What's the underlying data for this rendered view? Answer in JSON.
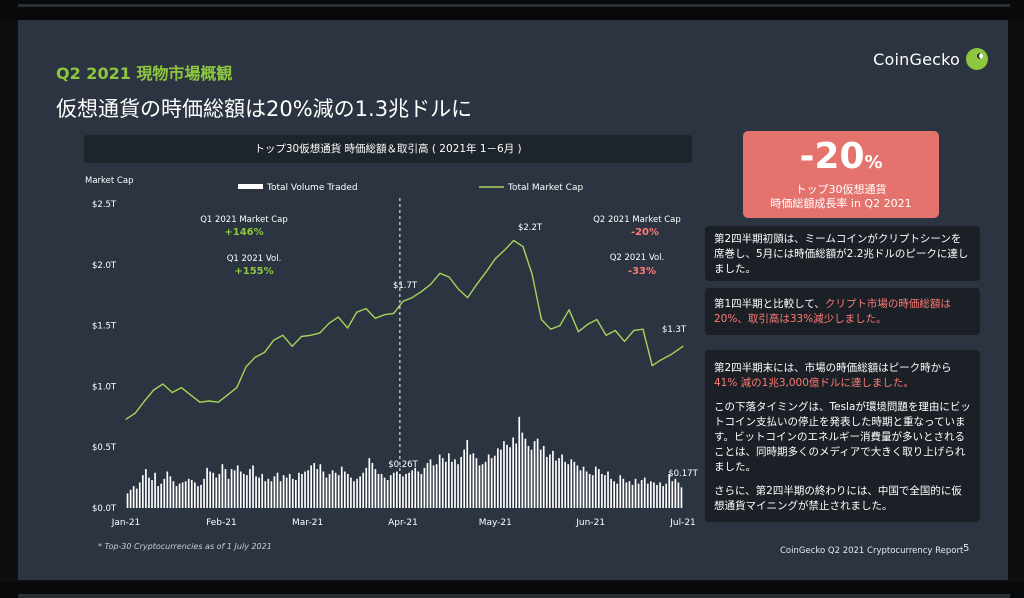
{
  "header": {
    "kicker": "Q2 2021 現物市場概観",
    "headline": "仮想通貨の時価総額は20%減の1.3兆ドルに",
    "brand": "CoinGecko"
  },
  "chart_title": "トップ30仮想通貨 時価総額＆取引高 ( 2021年 1－6月 )",
  "callout": {
    "value": "-20",
    "unit": "%",
    "line1": "トップ30仮想通貨",
    "line2": "時価総額成長率 in Q2 2021"
  },
  "notes": {
    "n1": "第2四半期初頭は、ミームコインがクリプトシーンを席巻し、5月には時価総額が2.2兆ドルのピークに達しました。",
    "n2_prefix": "第1四半期と比較して、",
    "n2_red": "クリプト市場の時価総額は20%、取引高は33%減少しました。",
    "n3_p1_prefix": "第2四半期末には、市場の時価総額はピーク時から",
    "n3_p1_red": "41% 減の1兆3,000億ドルに達しました。",
    "n3_p2": "この下落タイミングは、Teslaが環境問題を理由にビットコイン支払いの停止を発表した時期と重なっています。ビットコインのエネルギー消費量が多いとされることは、同時期多くのメディアで大きく取り上げられました。",
    "n3_p3": "さらに、第2四半期の終わりには、中国で全国的に仮想通貨マイニングが禁止されました。"
  },
  "footer": {
    "footnote": "* Top-30 Cryptocurrencies as of 1 July 2021",
    "report": "CoinGecko Q2 2021 Cryptocurrency Report",
    "page": "5"
  },
  "colors": {
    "line": "#a8d35a",
    "accent_green": "#8dc63f",
    "accent_red": "#ff7a73",
    "callout": "#e5736d",
    "slide_bg": "#2b3440"
  },
  "chart_data": {
    "type": "bar+line",
    "ylabel": "Market Cap",
    "yticks": [
      "$0.0T",
      "$0.5T",
      "$1.0T",
      "$1.5T",
      "$2.0T",
      "$2.5T"
    ],
    "ylim": [
      0,
      2.5
    ],
    "xticks": [
      {
        "label": "Jan-21",
        "day": 0
      },
      {
        "label": "Feb-21",
        "day": 31
      },
      {
        "label": "Mar-21",
        "day": 59
      },
      {
        "label": "Apr-21",
        "day": 90
      },
      {
        "label": "May-21",
        "day": 120
      },
      {
        "label": "Jun-21",
        "day": 151
      },
      {
        "label": "Jul-21",
        "day": 181
      }
    ],
    "legend": {
      "volume": "Total Volume Traded",
      "market_cap": "Total Market Cap"
    },
    "market_cap_points": [
      [
        0,
        0.73
      ],
      [
        3,
        0.78
      ],
      [
        6,
        0.88
      ],
      [
        9,
        0.97
      ],
      [
        12,
        1.02
      ],
      [
        15,
        0.95
      ],
      [
        18,
        0.99
      ],
      [
        21,
        0.93
      ],
      [
        24,
        0.87
      ],
      [
        27,
        0.88
      ],
      [
        30,
        0.87
      ],
      [
        33,
        0.93
      ],
      [
        36,
        0.99
      ],
      [
        39,
        1.16
      ],
      [
        42,
        1.24
      ],
      [
        45,
        1.28
      ],
      [
        48,
        1.38
      ],
      [
        51,
        1.42
      ],
      [
        54,
        1.33
      ],
      [
        57,
        1.41
      ],
      [
        60,
        1.42
      ],
      [
        63,
        1.44
      ],
      [
        66,
        1.52
      ],
      [
        69,
        1.57
      ],
      [
        72,
        1.48
      ],
      [
        75,
        1.61
      ],
      [
        78,
        1.64
      ],
      [
        81,
        1.56
      ],
      [
        84,
        1.59
      ],
      [
        87,
        1.6
      ],
      [
        90,
        1.7
      ],
      [
        93,
        1.73
      ],
      [
        96,
        1.78
      ],
      [
        99,
        1.84
      ],
      [
        102,
        1.93
      ],
      [
        105,
        1.9
      ],
      [
        108,
        1.8
      ],
      [
        111,
        1.73
      ],
      [
        114,
        1.84
      ],
      [
        117,
        1.94
      ],
      [
        120,
        2.05
      ],
      [
        123,
        2.12
      ],
      [
        126,
        2.2
      ],
      [
        129,
        2.15
      ],
      [
        132,
        1.92
      ],
      [
        135,
        1.55
      ],
      [
        138,
        1.47
      ],
      [
        141,
        1.5
      ],
      [
        144,
        1.63
      ],
      [
        147,
        1.45
      ],
      [
        150,
        1.51
      ],
      [
        153,
        1.55
      ],
      [
        156,
        1.42
      ],
      [
        159,
        1.46
      ],
      [
        162,
        1.37
      ],
      [
        165,
        1.46
      ],
      [
        168,
        1.47
      ],
      [
        171,
        1.17
      ],
      [
        174,
        1.22
      ],
      [
        177,
        1.26
      ],
      [
        181,
        1.33
      ]
    ],
    "volume": [
      0.12,
      0.15,
      0.18,
      0.16,
      0.21,
      0.27,
      0.32,
      0.25,
      0.23,
      0.29,
      0.18,
      0.2,
      0.24,
      0.3,
      0.26,
      0.22,
      0.18,
      0.2,
      0.21,
      0.22,
      0.24,
      0.23,
      0.21,
      0.18,
      0.19,
      0.24,
      0.33,
      0.3,
      0.29,
      0.25,
      0.28,
      0.36,
      0.32,
      0.24,
      0.32,
      0.31,
      0.35,
      0.3,
      0.28,
      0.27,
      0.32,
      0.35,
      0.26,
      0.25,
      0.28,
      0.22,
      0.24,
      0.22,
      0.26,
      0.29,
      0.22,
      0.27,
      0.25,
      0.28,
      0.24,
      0.23,
      0.29,
      0.28,
      0.3,
      0.31,
      0.35,
      0.37,
      0.32,
      0.36,
      0.3,
      0.25,
      0.28,
      0.31,
      0.29,
      0.27,
      0.34,
      0.3,
      0.28,
      0.25,
      0.22,
      0.24,
      0.26,
      0.29,
      0.33,
      0.41,
      0.37,
      0.32,
      0.28,
      0.28,
      0.25,
      0.23,
      0.27,
      0.29,
      0.3,
      0.28,
      0.26,
      0.28,
      0.29,
      0.31,
      0.33,
      0.3,
      0.28,
      0.33,
      0.37,
      0.4,
      0.35,
      0.36,
      0.44,
      0.41,
      0.38,
      0.45,
      0.38,
      0.4,
      0.36,
      0.42,
      0.48,
      0.56,
      0.44,
      0.45,
      0.41,
      0.35,
      0.36,
      0.38,
      0.44,
      0.41,
      0.43,
      0.49,
      0.48,
      0.55,
      0.52,
      0.5,
      0.58,
      0.53,
      0.75,
      0.62,
      0.57,
      0.51,
      0.48,
      0.55,
      0.57,
      0.48,
      0.51,
      0.42,
      0.44,
      0.47,
      0.39,
      0.41,
      0.44,
      0.38,
      0.36,
      0.4,
      0.38,
      0.35,
      0.31,
      0.34,
      0.3,
      0.28,
      0.27,
      0.34,
      0.32,
      0.28,
      0.27,
      0.3,
      0.24,
      0.22,
      0.2,
      0.27,
      0.24,
      0.21,
      0.22,
      0.19,
      0.24,
      0.2,
      0.23,
      0.25,
      0.2,
      0.22,
      0.21,
      0.19,
      0.21,
      0.18,
      0.2,
      0.28,
      0.22,
      0.24,
      0.21,
      0.17
    ],
    "q1_divider_day": 89,
    "annotations": {
      "q1_mc_label": "Q1 2021 Market Cap",
      "q1_mc_value": "+146%",
      "q1_vol_label": "Q1 2021 Vol.",
      "q1_vol_value": "+155%",
      "q2_mc_label": "Q2 2021 Market Cap",
      "q2_mc_value": "-20%",
      "q2_vol_label": "Q2 2021 Vol.",
      "q2_vol_value": "-33%",
      "peak_label": "$2.2T",
      "divider_label": "$1.7T",
      "end_label": "$1.3T",
      "vol_mid_label": "$0.26T",
      "vol_end_label": "$0.17T"
    }
  }
}
